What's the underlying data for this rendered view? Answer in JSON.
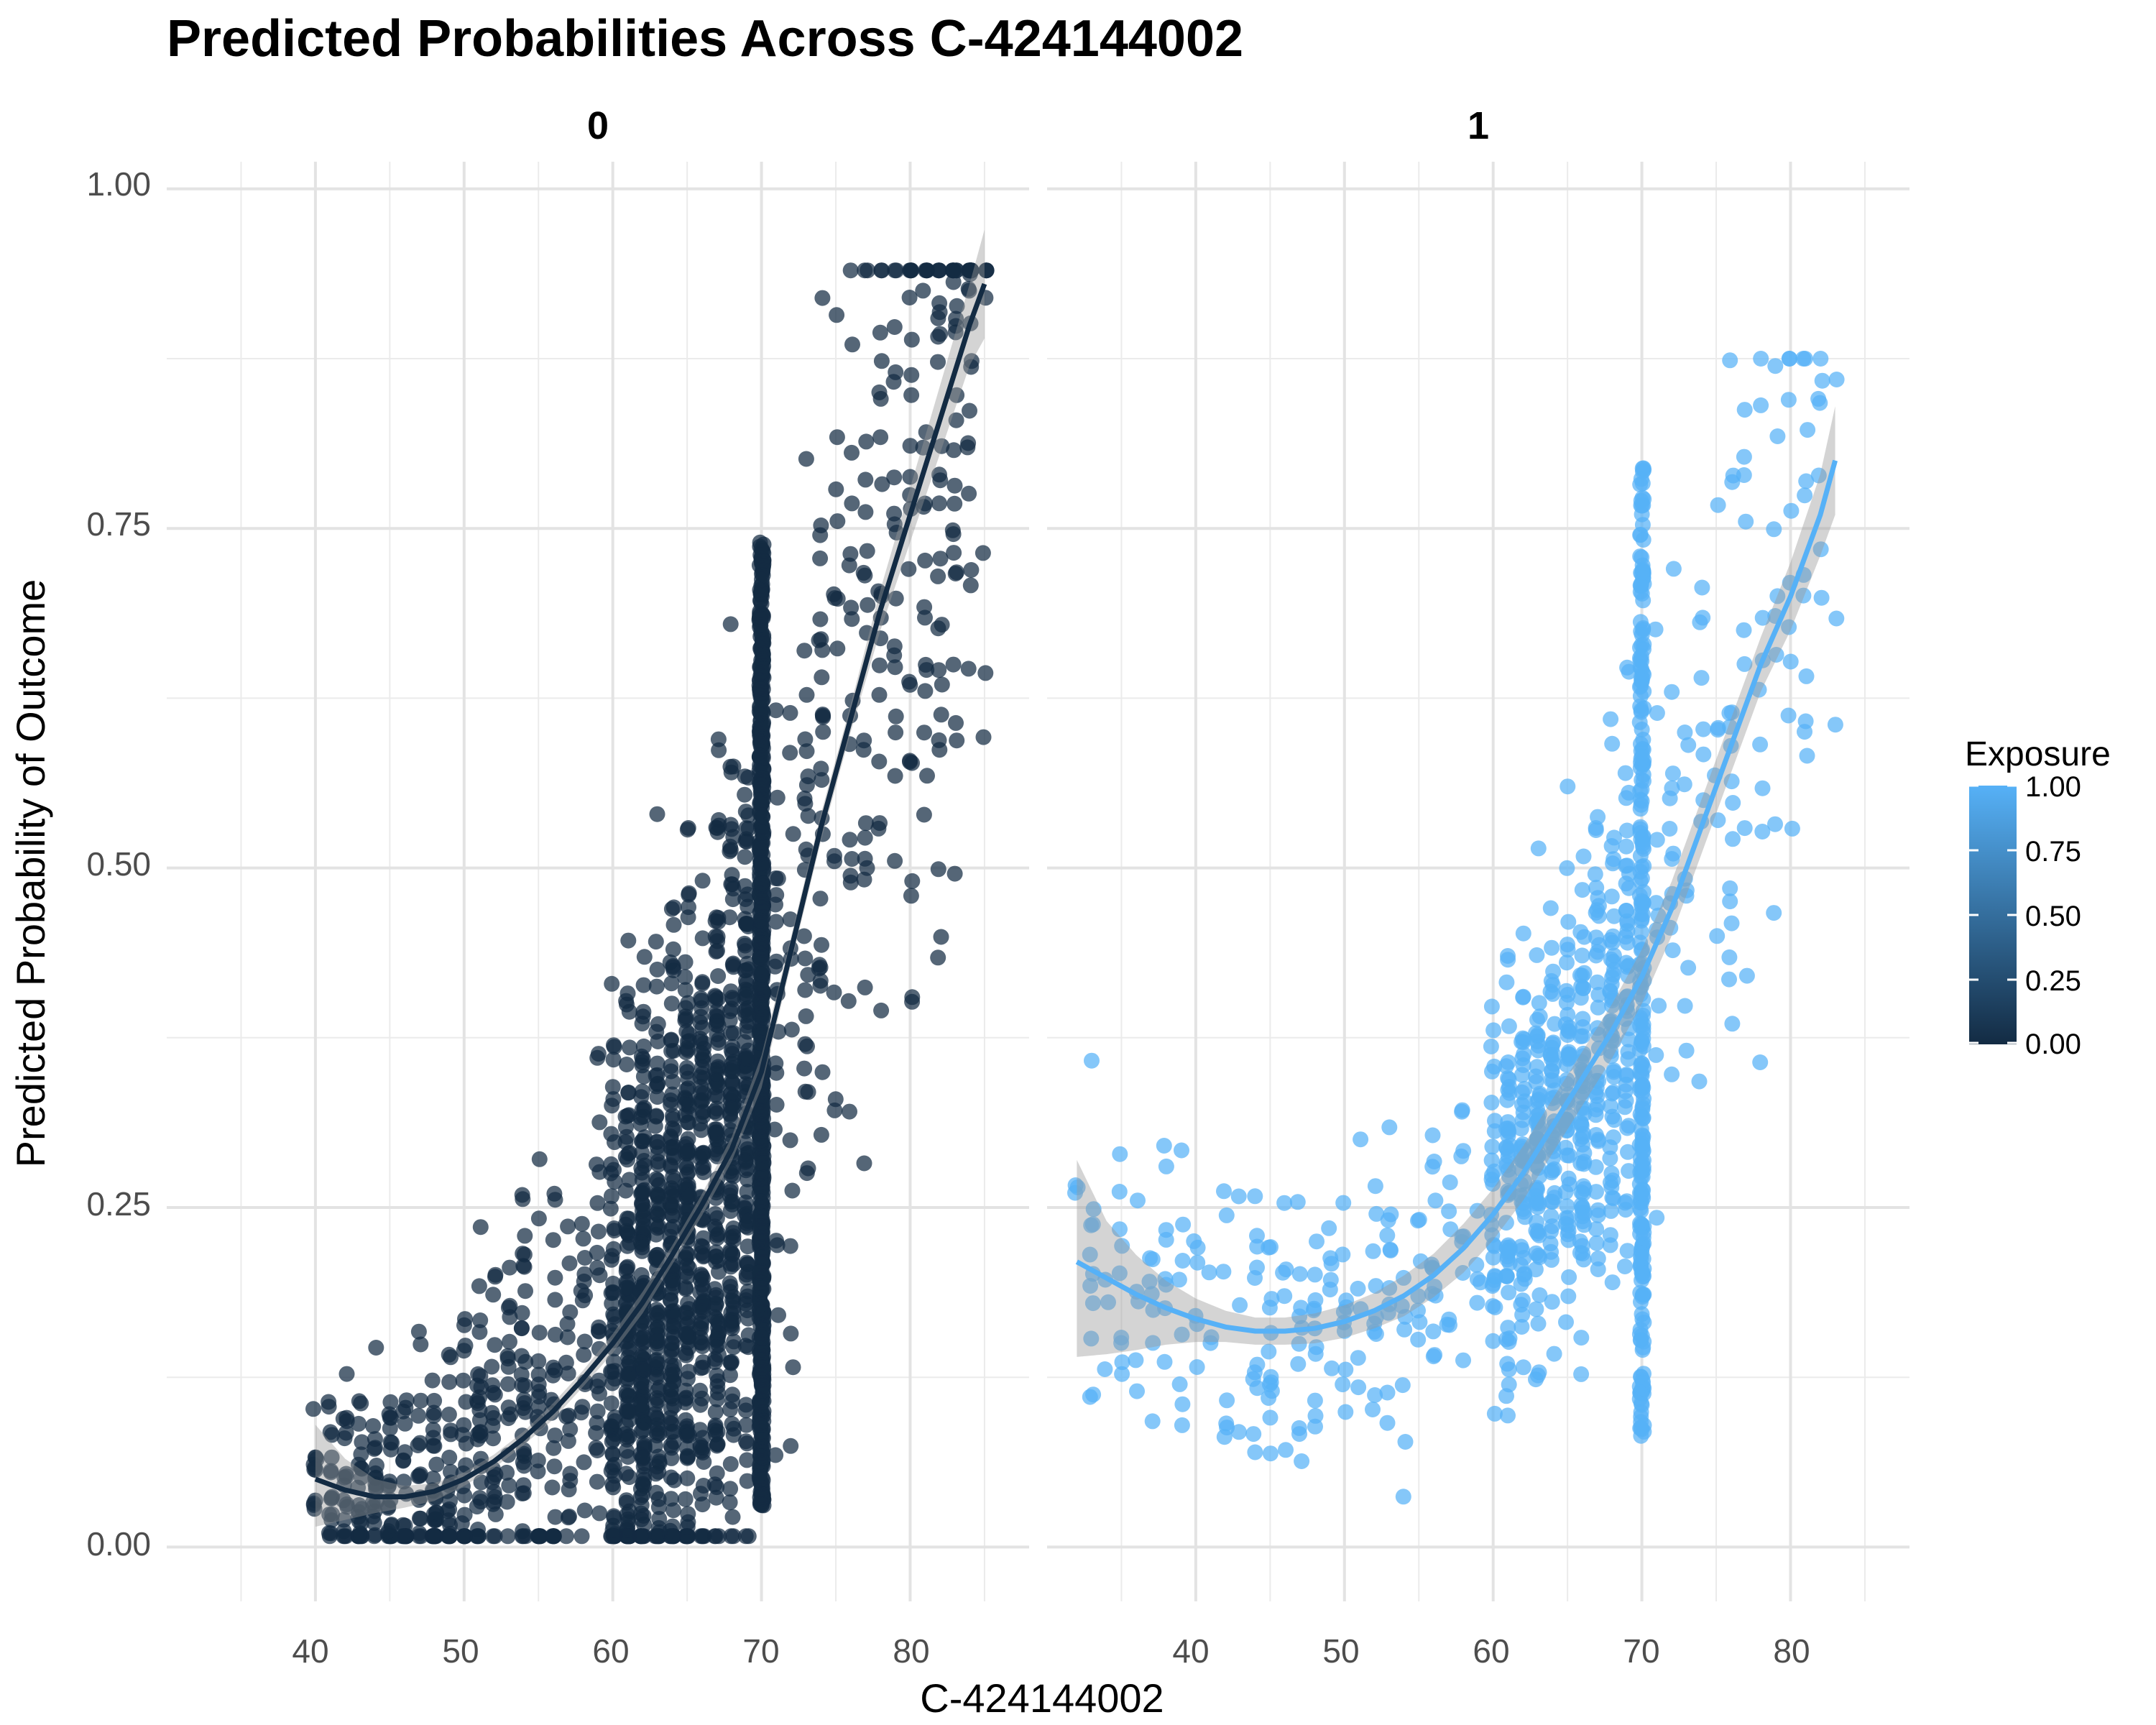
{
  "chart_data": {
    "type": "scatter",
    "title": "Predicted Probabilities Across C-424144002",
    "xlabel": "C-424144002",
    "ylabel": "Predicted Probability of Outcome",
    "facets": [
      "0",
      "1"
    ],
    "x_ticks": [
      "40",
      "50",
      "60",
      "70",
      "80"
    ],
    "y_ticks": [
      "0.00",
      "0.25",
      "0.50",
      "0.75",
      "1.00"
    ],
    "xlim": [
      30,
      88
    ],
    "ylim": [
      -0.04,
      1.02
    ],
    "grid": true,
    "legend": {
      "title": "Exposure",
      "position": "right",
      "ticks": [
        "1.00",
        "0.75",
        "0.50",
        "0.25",
        "0.00"
      ],
      "colors": {
        "low": "#132b43",
        "high": "#56b1f7"
      }
    },
    "series": [
      {
        "facet": "0",
        "exposure": 0,
        "color": "#132b43",
        "point_summary": {
          "x_range": [
            40,
            85
          ],
          "y_range": [
            0.0,
            0.94
          ],
          "description": "dense vertical stack at x=70 spanning 0.03-0.74"
        },
        "trend": {
          "x": [
            40,
            42,
            44,
            46,
            48,
            50,
            52,
            54,
            56,
            58,
            60,
            62,
            64,
            66,
            68,
            70,
            72,
            74,
            76,
            78,
            80,
            82,
            84,
            85
          ],
          "y": [
            0.05,
            0.042,
            0.037,
            0.037,
            0.041,
            0.05,
            0.063,
            0.08,
            0.1,
            0.124,
            0.15,
            0.18,
            0.215,
            0.252,
            0.293,
            0.35,
            0.44,
            0.53,
            0.61,
            0.69,
            0.76,
            0.83,
            0.9,
            0.93
          ]
        },
        "band_upper": [
          0.09,
          0.065,
          0.05,
          0.045,
          0.047,
          0.055,
          0.068,
          0.085,
          0.106,
          0.13,
          0.157,
          0.188,
          0.222,
          0.26,
          0.302,
          0.362,
          0.45,
          0.54,
          0.62,
          0.705,
          0.78,
          0.855,
          0.93,
          0.97
        ],
        "band_lower": [
          0.015,
          0.02,
          0.025,
          0.029,
          0.034,
          0.045,
          0.058,
          0.075,
          0.094,
          0.118,
          0.143,
          0.172,
          0.208,
          0.244,
          0.284,
          0.338,
          0.43,
          0.52,
          0.6,
          0.675,
          0.74,
          0.805,
          0.87,
          0.89
        ]
      },
      {
        "facet": "1",
        "exposure": 1,
        "color": "#56b1f7",
        "point_summary": {
          "x_range": [
            32,
            83
          ],
          "y_range": [
            0.0,
            0.88
          ],
          "description": "dense vertical stack at x=70 spanning 0.08-0.80"
        },
        "trend": {
          "x": [
            32,
            34,
            36,
            38,
            40,
            42,
            44,
            46,
            48,
            50,
            52,
            54,
            56,
            58,
            60,
            62,
            64,
            66,
            68,
            70,
            72,
            74,
            76,
            78,
            80,
            82,
            83
          ],
          "y": [
            0.21,
            0.198,
            0.186,
            0.176,
            0.168,
            0.162,
            0.159,
            0.159,
            0.161,
            0.166,
            0.174,
            0.185,
            0.2,
            0.22,
            0.245,
            0.275,
            0.31,
            0.345,
            0.38,
            0.42,
            0.47,
            0.53,
            0.59,
            0.65,
            0.7,
            0.76,
            0.8
          ]
        },
        "band_upper": [
          0.285,
          0.24,
          0.215,
          0.196,
          0.183,
          0.174,
          0.169,
          0.169,
          0.172,
          0.178,
          0.187,
          0.2,
          0.216,
          0.238,
          0.264,
          0.295,
          0.33,
          0.365,
          0.4,
          0.44,
          0.49,
          0.55,
          0.61,
          0.67,
          0.725,
          0.79,
          0.84
        ],
        "band_lower": [
          0.14,
          0.142,
          0.145,
          0.149,
          0.151,
          0.151,
          0.149,
          0.149,
          0.15,
          0.154,
          0.161,
          0.17,
          0.184,
          0.202,
          0.226,
          0.255,
          0.29,
          0.325,
          0.36,
          0.4,
          0.45,
          0.51,
          0.57,
          0.63,
          0.675,
          0.73,
          0.76
        ]
      }
    ]
  }
}
